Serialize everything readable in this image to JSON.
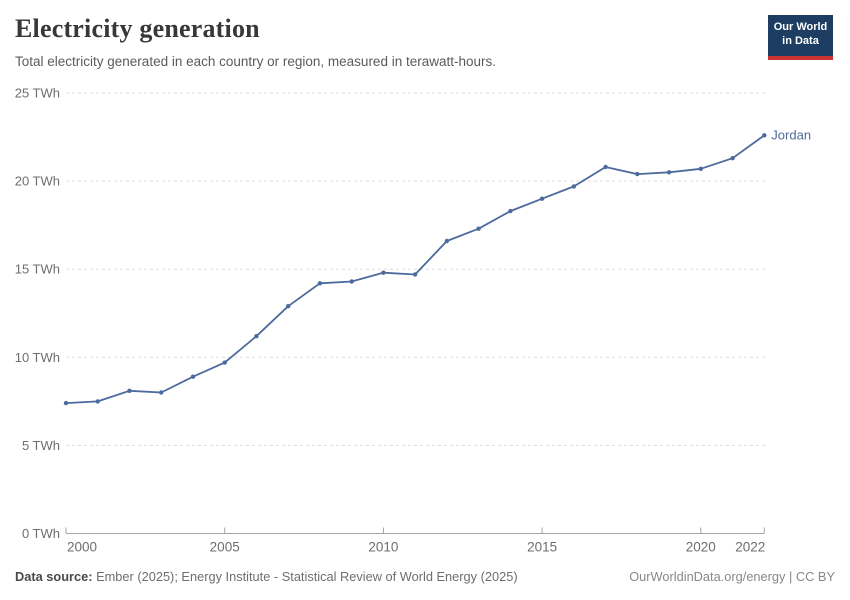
{
  "header": {
    "title": "Electricity generation",
    "subtitle": "Total electricity generated in each country or region, measured in terawatt-hours.",
    "logo": {
      "line1": "Our World",
      "line2": "in Data"
    }
  },
  "chart_data": {
    "type": "line",
    "title": "Electricity generation",
    "unit": "TWh",
    "x_label": "",
    "y_label": "",
    "years": [
      2000,
      2001,
      2002,
      2003,
      2004,
      2005,
      2006,
      2007,
      2008,
      2009,
      2010,
      2011,
      2012,
      2013,
      2014,
      2015,
      2016,
      2017,
      2018,
      2019,
      2020,
      2021,
      2022
    ],
    "series": [
      {
        "name": "Jordan",
        "color": "#4C6A9C",
        "values": [
          7.4,
          7.5,
          8.1,
          8.0,
          8.9,
          9.7,
          11.2,
          12.9,
          14.2,
          14.3,
          14.8,
          14.7,
          16.6,
          17.3,
          18.3,
          19.0,
          19.7,
          20.8,
          20.4,
          20.5,
          20.7,
          21.3,
          22.6
        ]
      }
    ],
    "x_ticks": [
      2000,
      2005,
      2010,
      2015,
      2020,
      2022
    ],
    "y_ticks": [
      0,
      5,
      10,
      15,
      20,
      25
    ],
    "y_tick_unit": "TWh",
    "xlim": [
      2000,
      2022
    ],
    "ylim": [
      0,
      25
    ],
    "grid": "horizontal-dashed",
    "legend_position": "end-of-line",
    "entity_label": "Jordan"
  },
  "footer": {
    "source_label": "Data source:",
    "source_text": " Ember (2025); Energy Institute - Statistical Review of World Energy (2025)",
    "rights": "OurWorldinData.org/energy | CC BY"
  },
  "colors": {
    "series": "#4C6A9C",
    "grid": "#dddddd",
    "axis": "#a5a5a5",
    "tick_label": "#6e6e6e",
    "title": "#383838",
    "subtitle": "#5b5b5b",
    "logo_bg": "#1d3d63",
    "logo_bar": "#cb3431"
  }
}
